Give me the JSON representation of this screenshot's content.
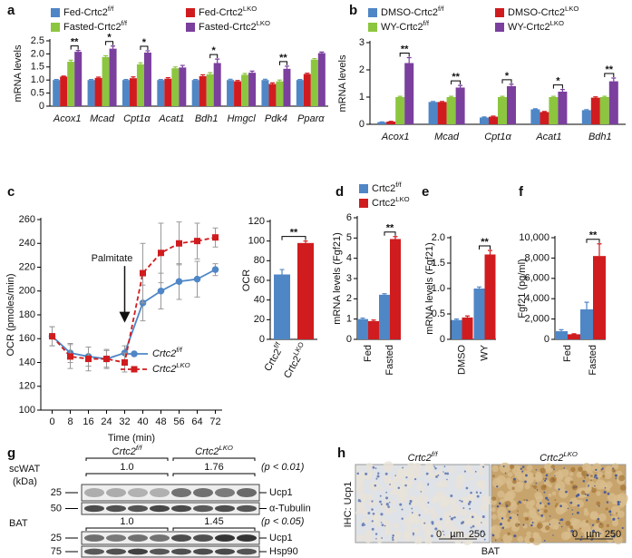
{
  "chart_data": [
    {
      "type": "bar",
      "panel": "a",
      "ylabel": "mRNA levels",
      "categories": [
        "Acox1",
        "Mcad",
        "Cpt1α",
        "Acat1",
        "Bdh1",
        "Hmgcl",
        "Pdk4",
        "Pparα"
      ],
      "series": [
        {
          "name": "Fed-Crtc2f/f",
          "color": "#4f86c6",
          "values": [
            1,
            1,
            1,
            1,
            1,
            1,
            1,
            1
          ],
          "errors": [
            0.02,
            0.02,
            0.02,
            0.02,
            0.02,
            0.03,
            0.03,
            0.02
          ]
        },
        {
          "name": "Fed-Crtc2LKO",
          "color": "#d01c1f",
          "values": [
            1.13,
            1.08,
            1.07,
            1.05,
            1.15,
            0.95,
            0.85,
            1.23
          ],
          "errors": [
            0.02,
            0.03,
            0.05,
            0.04,
            0.05,
            0.03,
            0.04,
            0.03
          ]
        },
        {
          "name": "Fasted-Crtc2f/f",
          "color": "#8cc63f",
          "values": [
            1.7,
            1.88,
            1.6,
            1.45,
            1.22,
            1.2,
            0.95,
            1.78
          ],
          "errors": [
            0.06,
            0.05,
            0.06,
            0.05,
            0.06,
            0.05,
            0.05,
            0.04
          ]
        },
        {
          "name": "Fasted-Crtc2LKO",
          "color": "#7b3f9e",
          "values": [
            2.08,
            2.2,
            2.05,
            1.48,
            1.65,
            1.28,
            1.43,
            2.03
          ],
          "errors": [
            0.05,
            0.1,
            0.07,
            0.08,
            0.15,
            0.06,
            0.1,
            0.04
          ]
        }
      ],
      "significance": [
        "**",
        "*",
        "*",
        null,
        "*",
        null,
        "**",
        null
      ],
      "ylim": [
        0,
        2.5
      ],
      "yticks": [
        0,
        0.5,
        {
          "value": 1,
          "label": "1.0"
        },
        1.5,
        {
          "value": 2,
          "label": "2.0"
        },
        2.5
      ]
    },
    {
      "type": "bar",
      "panel": "b",
      "ylabel": "mRNA levels",
      "categories": [
        "Acox1",
        "Mcad",
        "Cpt1α",
        "Acat1",
        "Bdh1"
      ],
      "series": [
        {
          "name": "DMSO-Crtc2f/f",
          "color": "#4f86c6",
          "values": [
            0.08,
            0.82,
            0.25,
            0.55,
            0.52
          ],
          "errors": [
            0.01,
            0.02,
            0.02,
            0.02,
            0.02
          ]
        },
        {
          "name": "DMSO-Crtc2LKO",
          "color": "#d01c1f",
          "values": [
            0.1,
            0.82,
            0.28,
            0.45,
            0.98
          ],
          "errors": [
            0.01,
            0.02,
            0.02,
            0.02,
            0.03
          ]
        },
        {
          "name": "WY-Crtc2f/f",
          "color": "#8cc63f",
          "values": [
            1,
            1,
            1,
            1,
            1
          ],
          "errors": [
            0.03,
            0.03,
            0.03,
            0.03,
            0.03
          ]
        },
        {
          "name": "WY-Crtc2LKO",
          "color": "#7b3f9e",
          "values": [
            2.25,
            1.35,
            1.4,
            1.2,
            1.58
          ],
          "errors": [
            0.2,
            0.08,
            0.07,
            0.08,
            0.12
          ]
        }
      ],
      "significance": [
        "**",
        "**",
        "*",
        "*",
        "**"
      ],
      "ylim": [
        0,
        3
      ],
      "yticks": [
        0,
        1,
        2,
        3
      ]
    },
    {
      "type": "line",
      "panel": "c",
      "ylabel": "OCR (pmoles/min)",
      "xlabel": "Time (min)",
      "annotation": "Palmitate",
      "x": [
        0,
        8,
        16,
        24,
        32,
        40,
        48,
        56,
        64,
        72
      ],
      "series": [
        {
          "name": "Crtc2f/f",
          "color": "#4f86c6",
          "marker": "circle",
          "dash": false,
          "values": [
            162,
            148,
            145,
            143,
            148,
            190,
            200,
            208,
            210,
            218
          ],
          "errors": [
            8,
            8,
            8,
            7,
            6,
            15,
            15,
            15,
            15,
            5
          ]
        },
        {
          "name": "Crtc2LKO",
          "color": "#d01c1f",
          "marker": "square",
          "dash": true,
          "values": [
            162,
            145,
            143,
            143,
            140,
            215,
            232,
            240,
            242,
            245
          ],
          "errors": [
            8,
            10,
            10,
            8,
            8,
            25,
            25,
            18,
            15,
            8
          ]
        }
      ],
      "xlim": [
        -5,
        75
      ],
      "xticks": [
        0,
        8,
        16,
        24,
        32,
        40,
        48,
        56,
        64,
        72
      ],
      "ylim": [
        100,
        260
      ],
      "yticks": [
        100,
        120,
        140,
        160,
        180,
        200,
        220,
        240,
        260
      ]
    },
    {
      "type": "bar",
      "ylabel": "OCR",
      "categories": [
        "Crtc2f/f",
        "Crtc2LKO"
      ],
      "values": [
        66,
        98
      ],
      "errors": [
        5,
        2
      ],
      "colors": [
        "#4f86c6",
        "#d01c1f"
      ],
      "significance": "**",
      "ylim": [
        0,
        120
      ],
      "yticks": [
        0,
        20,
        40,
        60,
        80,
        100,
        120
      ]
    },
    {
      "type": "bar",
      "panel": "d",
      "ylabel": "mRNA levels (Fgf21)",
      "categories": [
        "Fed",
        "Fasted"
      ],
      "series": [
        {
          "name": "Crtc2f/f",
          "color": "#4f86c6",
          "values": [
            1.0,
            2.2
          ],
          "errors": [
            0.05,
            0.05
          ]
        },
        {
          "name": "Crtc2LKO",
          "color": "#d01c1f",
          "values": [
            0.9,
            4.95
          ],
          "errors": [
            0.05,
            0.12
          ]
        }
      ],
      "significance": [
        null,
        "**"
      ],
      "ylim": [
        0,
        6
      ],
      "yticks": [
        0,
        1,
        2,
        3,
        4,
        5,
        6
      ]
    },
    {
      "type": "bar",
      "panel": "e",
      "ylabel": "mRNA levels (Fgf21)",
      "categories": [
        "DMSO",
        "WY"
      ],
      "series": [
        {
          "color": "#4f86c6",
          "values": [
            0.38,
            1.0
          ],
          "errors": [
            0.02,
            0.03
          ]
        },
        {
          "color": "#d01c1f",
          "values": [
            0.43,
            1.67
          ],
          "errors": [
            0.03,
            0.08
          ]
        }
      ],
      "significance": [
        null,
        "**"
      ],
      "ylim": [
        0,
        2
      ],
      "yticks": [
        0,
        0.5,
        {
          "value": 1,
          "label": "1.0"
        },
        1.5,
        {
          "value": 2,
          "label": "2.0"
        }
      ]
    },
    {
      "type": "bar",
      "panel": "f",
      "ylabel": "Fgf21 (pg/ml)",
      "categories": [
        "Fed",
        "Fasted"
      ],
      "series": [
        {
          "color": "#4f86c6",
          "values": [
            800,
            2950
          ],
          "errors": [
            150,
            700
          ]
        },
        {
          "color": "#d01c1f",
          "values": [
            500,
            8200
          ],
          "errors": [
            50,
            1200
          ]
        }
      ],
      "significance": [
        null,
        "**"
      ],
      "ylim": [
        0,
        10000
      ],
      "yticks": [
        0,
        {
          "value": 2000,
          "label": "2,000"
        },
        {
          "value": 4000,
          "label": "4,000"
        },
        {
          "value": 6000,
          "label": "6,000"
        },
        {
          "value": 8000,
          "label": "8,000"
        },
        {
          "value": 10000,
          "label": "10,000"
        }
      ]
    }
  ],
  "blot": {
    "panel": "g",
    "header": [
      "Crtc2f/f",
      "Crtc2LKO"
    ],
    "unit": "(kDa)",
    "blocks": [
      {
        "tissue": "scWAT",
        "ratios": [
          "1.0",
          "1.76"
        ],
        "p": "(p < 0.01)",
        "markers": [
          "25",
          "50"
        ],
        "bands": [
          "Ucp1",
          "α-Tubulin"
        ]
      },
      {
        "tissue": "BAT",
        "ratios": [
          "1.0",
          "1.45"
        ],
        "p": "(p < 0.05)",
        "markers": [
          "25",
          "75"
        ],
        "bands": [
          "Ucp1",
          "Hsp90"
        ]
      }
    ]
  },
  "ihc": {
    "panel": "h",
    "header": [
      "Crtc2f/f",
      "Crtc2LKO"
    ],
    "ylabel": "IHC: Ucp1",
    "caption": "BAT",
    "scale": [
      "0",
      "µm",
      "250"
    ]
  }
}
